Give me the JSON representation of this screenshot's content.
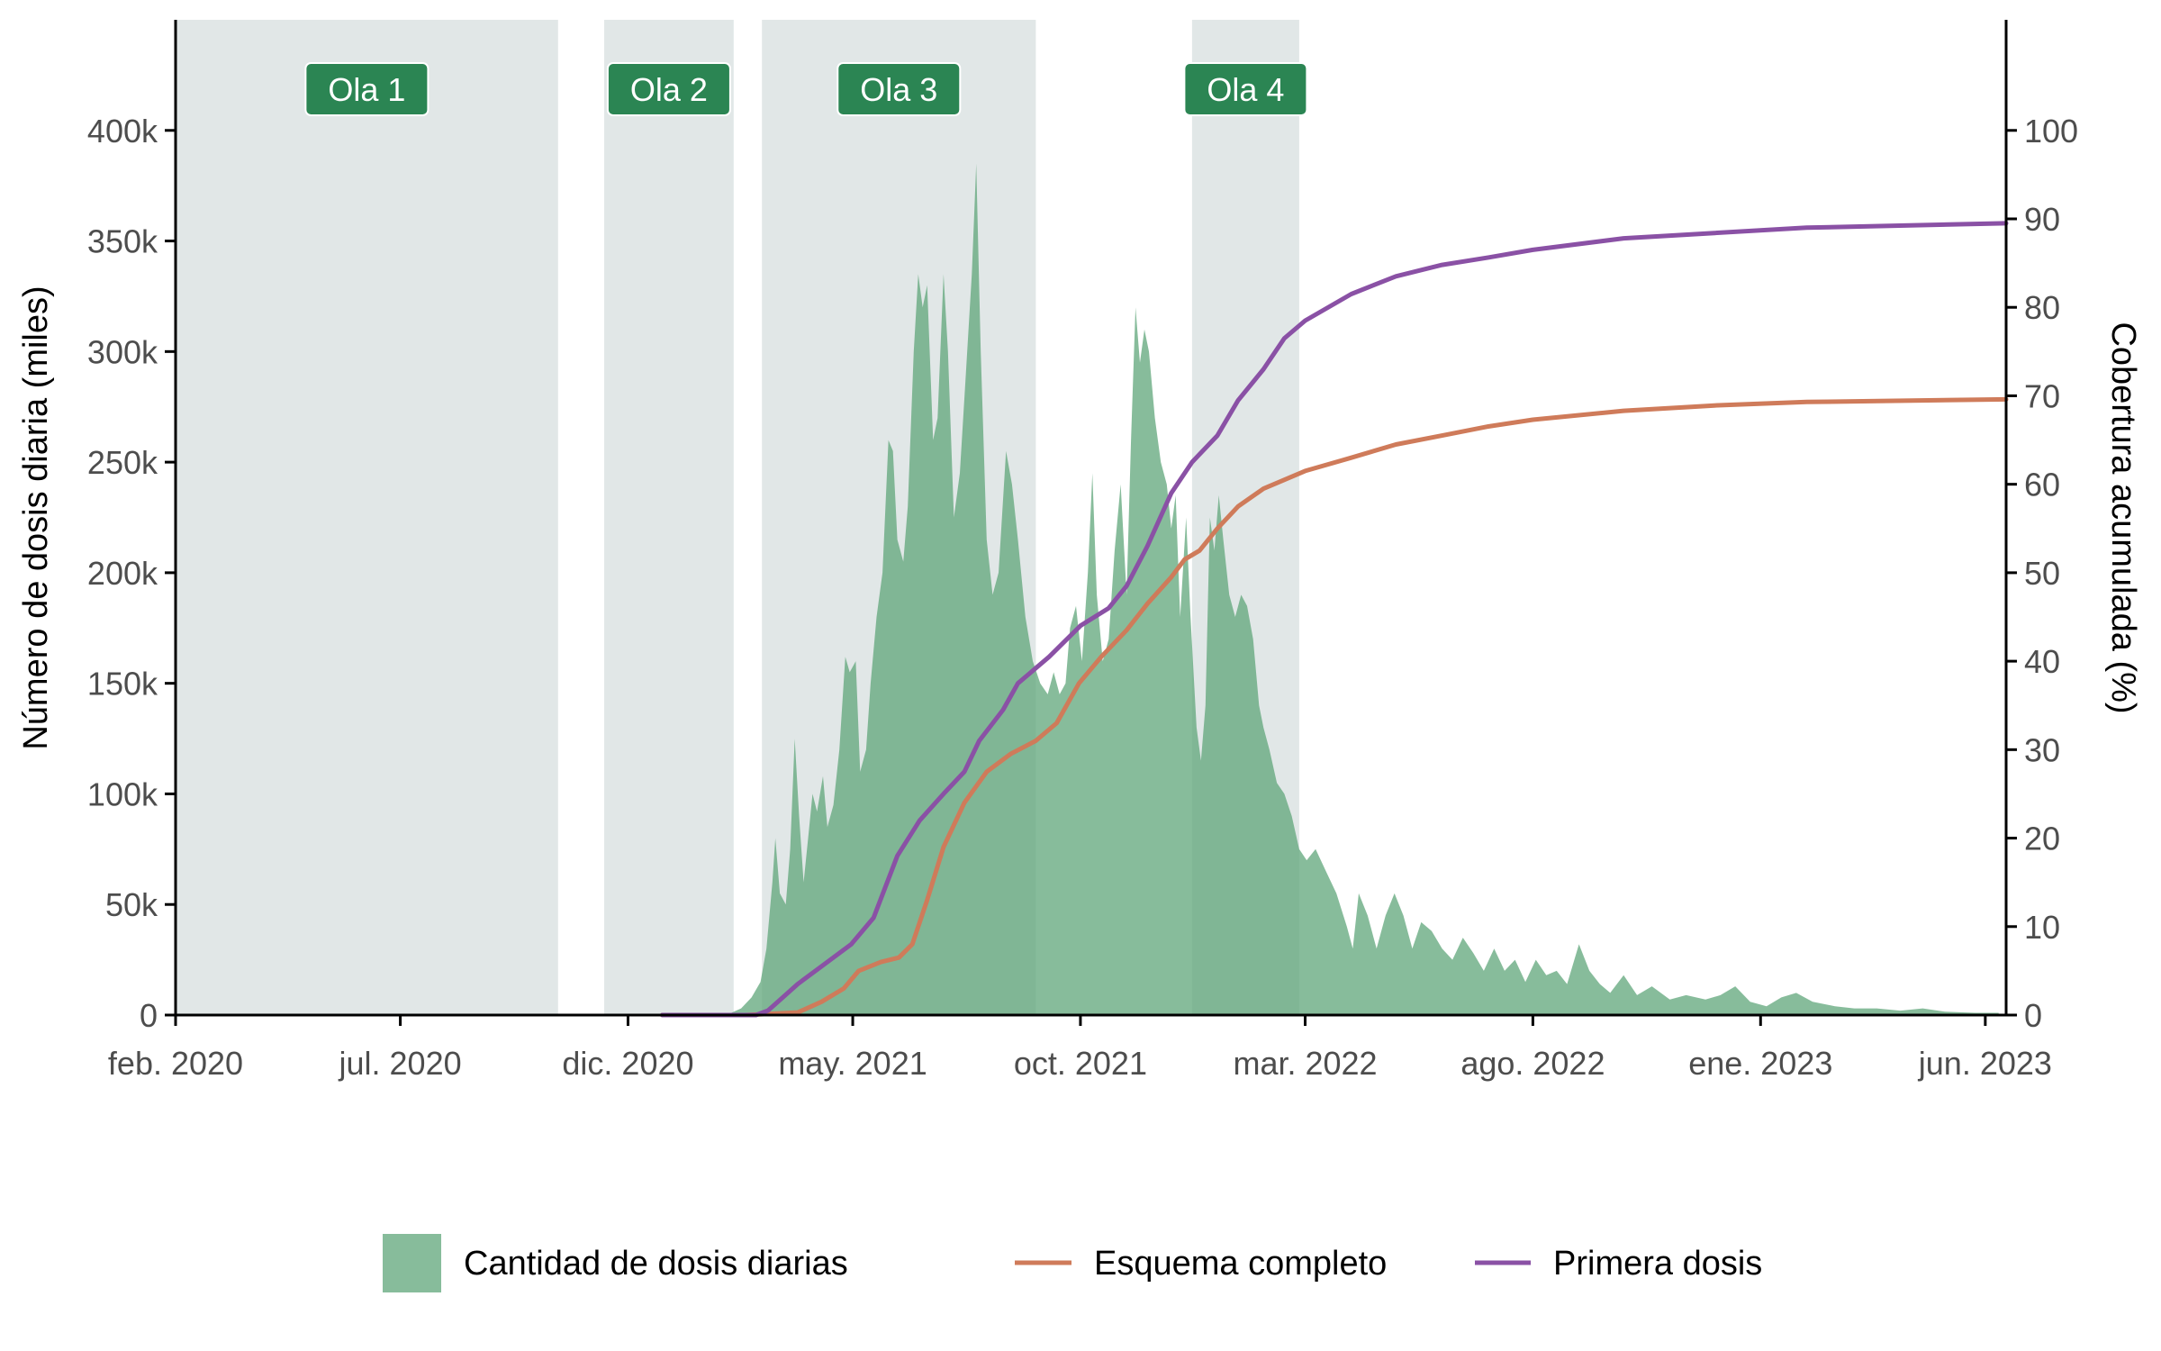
{
  "chart_data": {
    "type": "area",
    "x_axis": {
      "type": "date",
      "range": [
        "2020-02-01",
        "2023-06-15"
      ],
      "ticks": [
        {
          "date": "2020-02-01",
          "label": "feb. 2020"
        },
        {
          "date": "2020-07-01",
          "label": "jul. 2020"
        },
        {
          "date": "2020-12-01",
          "label": "dic. 2020"
        },
        {
          "date": "2021-05-01",
          "label": "may. 2021"
        },
        {
          "date": "2021-10-01",
          "label": "oct. 2021"
        },
        {
          "date": "2022-03-01",
          "label": "mar. 2022"
        },
        {
          "date": "2022-08-01",
          "label": "ago. 2022"
        },
        {
          "date": "2023-01-01",
          "label": "ene. 2023"
        },
        {
          "date": "2023-06-01",
          "label": "jun. 2023"
        }
      ]
    },
    "y_left": {
      "label": "Número de dosis diaria (miles)",
      "range": [
        0,
        450000
      ],
      "ticks": [
        {
          "value": 0,
          "label": "0"
        },
        {
          "value": 50000,
          "label": "50k"
        },
        {
          "value": 100000,
          "label": "100k"
        },
        {
          "value": 150000,
          "label": "150k"
        },
        {
          "value": 200000,
          "label": "200k"
        },
        {
          "value": 250000,
          "label": "250k"
        },
        {
          "value": 300000,
          "label": "300k"
        },
        {
          "value": 350000,
          "label": "350k"
        },
        {
          "value": 400000,
          "label": "400k"
        }
      ]
    },
    "y_right": {
      "label": "Cobertura acumulada (%)",
      "range": [
        0,
        112.5
      ],
      "ticks": [
        0,
        10,
        20,
        30,
        40,
        50,
        60,
        70,
        80,
        90,
        100
      ]
    },
    "grid": false,
    "legend_position": "bottom",
    "waves": [
      {
        "label": "Ola 1",
        "start": "2020-02-01",
        "end": "2020-10-15"
      },
      {
        "label": "Ola 2",
        "start": "2020-11-15",
        "end": "2021-02-10"
      },
      {
        "label": "Ola 3",
        "start": "2021-03-01",
        "end": "2021-09-01"
      },
      {
        "label": "Ola 4",
        "start": "2021-12-15",
        "end": "2022-02-25"
      }
    ],
    "series": [
      {
        "name": "Cantidad de dosis diarias",
        "type": "area",
        "axis": "left",
        "color": "#5fa57a",
        "points": [
          [
            "2020-12-24",
            0
          ],
          [
            "2021-02-05",
            0
          ],
          [
            "2021-02-15",
            3000
          ],
          [
            "2021-02-22",
            8000
          ],
          [
            "2021-02-28",
            15000
          ],
          [
            "2021-03-04",
            30000
          ],
          [
            "2021-03-08",
            60000
          ],
          [
            "2021-03-10",
            80000
          ],
          [
            "2021-03-13",
            55000
          ],
          [
            "2021-03-17",
            50000
          ],
          [
            "2021-03-20",
            75000
          ],
          [
            "2021-03-23",
            125000
          ],
          [
            "2021-03-26",
            90000
          ],
          [
            "2021-03-29",
            60000
          ],
          [
            "2021-04-01",
            80000
          ],
          [
            "2021-04-04",
            100000
          ],
          [
            "2021-04-07",
            92000
          ],
          [
            "2021-04-11",
            108000
          ],
          [
            "2021-04-14",
            85000
          ],
          [
            "2021-04-18",
            95000
          ],
          [
            "2021-04-22",
            120000
          ],
          [
            "2021-04-26",
            162000
          ],
          [
            "2021-04-29",
            155000
          ],
          [
            "2021-05-03",
            160000
          ],
          [
            "2021-05-06",
            110000
          ],
          [
            "2021-05-10",
            120000
          ],
          [
            "2021-05-13",
            150000
          ],
          [
            "2021-05-17",
            180000
          ],
          [
            "2021-05-21",
            200000
          ],
          [
            "2021-05-25",
            260000
          ],
          [
            "2021-05-28",
            255000
          ],
          [
            "2021-05-31",
            215000
          ],
          [
            "2021-06-04",
            205000
          ],
          [
            "2021-06-07",
            230000
          ],
          [
            "2021-06-11",
            300000
          ],
          [
            "2021-06-14",
            335000
          ],
          [
            "2021-06-17",
            320000
          ],
          [
            "2021-06-20",
            330000
          ],
          [
            "2021-06-24",
            260000
          ],
          [
            "2021-06-27",
            270000
          ],
          [
            "2021-07-01",
            335000
          ],
          [
            "2021-07-04",
            300000
          ],
          [
            "2021-07-08",
            225000
          ],
          [
            "2021-07-12",
            245000
          ],
          [
            "2021-07-16",
            290000
          ],
          [
            "2021-07-20",
            335000
          ],
          [
            "2021-07-23",
            385000
          ],
          [
            "2021-07-26",
            300000
          ],
          [
            "2021-07-30",
            215000
          ],
          [
            "2021-08-03",
            190000
          ],
          [
            "2021-08-07",
            200000
          ],
          [
            "2021-08-12",
            255000
          ],
          [
            "2021-08-16",
            240000
          ],
          [
            "2021-08-20",
            215000
          ],
          [
            "2021-08-25",
            180000
          ],
          [
            "2021-08-30",
            160000
          ],
          [
            "2021-09-04",
            150000
          ],
          [
            "2021-09-09",
            145000
          ],
          [
            "2021-09-13",
            155000
          ],
          [
            "2021-09-17",
            145000
          ],
          [
            "2021-09-21",
            150000
          ],
          [
            "2021-09-24",
            175000
          ],
          [
            "2021-09-28",
            185000
          ],
          [
            "2021-10-02",
            160000
          ],
          [
            "2021-10-06",
            200000
          ],
          [
            "2021-10-09",
            245000
          ],
          [
            "2021-10-12",
            190000
          ],
          [
            "2021-10-16",
            160000
          ],
          [
            "2021-10-20",
            170000
          ],
          [
            "2021-10-24",
            210000
          ],
          [
            "2021-10-28",
            240000
          ],
          [
            "2021-11-01",
            190000
          ],
          [
            "2021-11-04",
            260000
          ],
          [
            "2021-11-07",
            320000
          ],
          [
            "2021-11-10",
            295000
          ],
          [
            "2021-11-13",
            310000
          ],
          [
            "2021-11-16",
            300000
          ],
          [
            "2021-11-20",
            270000
          ],
          [
            "2021-11-24",
            250000
          ],
          [
            "2021-11-28",
            240000
          ],
          [
            "2021-12-01",
            220000
          ],
          [
            "2021-12-04",
            235000
          ],
          [
            "2021-12-07",
            180000
          ],
          [
            "2021-12-11",
            225000
          ],
          [
            "2021-12-14",
            180000
          ],
          [
            "2021-12-18",
            130000
          ],
          [
            "2021-12-21",
            115000
          ],
          [
            "2021-12-24",
            140000
          ],
          [
            "2021-12-27",
            225000
          ],
          [
            "2021-12-30",
            210000
          ],
          [
            "2022-01-02",
            235000
          ],
          [
            "2022-01-05",
            215000
          ],
          [
            "2022-01-09",
            190000
          ],
          [
            "2022-01-13",
            180000
          ],
          [
            "2022-01-17",
            190000
          ],
          [
            "2022-01-21",
            185000
          ],
          [
            "2022-01-25",
            170000
          ],
          [
            "2022-01-29",
            140000
          ],
          [
            "2022-02-01",
            130000
          ],
          [
            "2022-02-05",
            120000
          ],
          [
            "2022-02-10",
            105000
          ],
          [
            "2022-02-15",
            100000
          ],
          [
            "2022-02-20",
            90000
          ],
          [
            "2022-02-25",
            75000
          ],
          [
            "2022-03-02",
            70000
          ],
          [
            "2022-03-08",
            75000
          ],
          [
            "2022-03-15",
            65000
          ],
          [
            "2022-03-22",
            55000
          ],
          [
            "2022-03-29",
            40000
          ],
          [
            "2022-04-02",
            30000
          ],
          [
            "2022-04-06",
            55000
          ],
          [
            "2022-04-12",
            45000
          ],
          [
            "2022-04-18",
            30000
          ],
          [
            "2022-04-24",
            45000
          ],
          [
            "2022-04-30",
            55000
          ],
          [
            "2022-05-06",
            45000
          ],
          [
            "2022-05-12",
            30000
          ],
          [
            "2022-05-18",
            42000
          ],
          [
            "2022-05-25",
            38000
          ],
          [
            "2022-06-01",
            30000
          ],
          [
            "2022-06-08",
            25000
          ],
          [
            "2022-06-15",
            35000
          ],
          [
            "2022-06-22",
            28000
          ],
          [
            "2022-06-29",
            20000
          ],
          [
            "2022-07-06",
            30000
          ],
          [
            "2022-07-13",
            20000
          ],
          [
            "2022-07-20",
            25000
          ],
          [
            "2022-07-27",
            15000
          ],
          [
            "2022-08-03",
            25000
          ],
          [
            "2022-08-10",
            18000
          ],
          [
            "2022-08-17",
            20000
          ],
          [
            "2022-08-24",
            14000
          ],
          [
            "2022-09-01",
            32000
          ],
          [
            "2022-09-08",
            20000
          ],
          [
            "2022-09-15",
            14000
          ],
          [
            "2022-09-22",
            10000
          ],
          [
            "2022-10-01",
            18000
          ],
          [
            "2022-10-10",
            9000
          ],
          [
            "2022-10-20",
            13000
          ],
          [
            "2022-11-01",
            7000
          ],
          [
            "2022-11-12",
            9000
          ],
          [
            "2022-11-25",
            7000
          ],
          [
            "2022-12-05",
            9000
          ],
          [
            "2022-12-15",
            13000
          ],
          [
            "2022-12-25",
            6000
          ],
          [
            "2023-01-05",
            4000
          ],
          [
            "2023-01-15",
            8000
          ],
          [
            "2023-01-25",
            10000
          ],
          [
            "2023-02-05",
            6000
          ],
          [
            "2023-02-20",
            4000
          ],
          [
            "2023-03-05",
            3000
          ],
          [
            "2023-03-20",
            3000
          ],
          [
            "2023-04-05",
            2000
          ],
          [
            "2023-04-20",
            3000
          ],
          [
            "2023-05-05",
            1500
          ],
          [
            "2023-05-25",
            1000
          ],
          [
            "2023-06-10",
            1000
          ]
        ]
      },
      {
        "name": "Esquema completo",
        "type": "line",
        "axis": "right",
        "color": "#cf7b5a",
        "points": [
          [
            "2020-12-24",
            0
          ],
          [
            "2021-02-18",
            0
          ],
          [
            "2021-03-25",
            0.3
          ],
          [
            "2021-04-10",
            1.5
          ],
          [
            "2021-04-25",
            3
          ],
          [
            "2021-05-05",
            5
          ],
          [
            "2021-05-20",
            6
          ],
          [
            "2021-06-01",
            6.5
          ],
          [
            "2021-06-10",
            8
          ],
          [
            "2021-06-20",
            13
          ],
          [
            "2021-07-01",
            19
          ],
          [
            "2021-07-15",
            24
          ],
          [
            "2021-07-30",
            27.5
          ],
          [
            "2021-08-15",
            29.5
          ],
          [
            "2021-09-01",
            31
          ],
          [
            "2021-09-15",
            33
          ],
          [
            "2021-09-30",
            37.5
          ],
          [
            "2021-10-15",
            40.5
          ],
          [
            "2021-11-01",
            43.5
          ],
          [
            "2021-11-15",
            46.5
          ],
          [
            "2021-12-01",
            49.5
          ],
          [
            "2021-12-10",
            51.5
          ],
          [
            "2021-12-20",
            52.5
          ],
          [
            "2022-01-01",
            55
          ],
          [
            "2022-01-15",
            57.5
          ],
          [
            "2022-02-01",
            59.5
          ],
          [
            "2022-03-01",
            61.5
          ],
          [
            "2022-04-01",
            63
          ],
          [
            "2022-05-01",
            64.5
          ],
          [
            "2022-06-01",
            65.5
          ],
          [
            "2022-07-01",
            66.5
          ],
          [
            "2022-08-01",
            67.3
          ],
          [
            "2022-10-01",
            68.3
          ],
          [
            "2022-12-01",
            68.9
          ],
          [
            "2023-02-01",
            69.3
          ],
          [
            "2023-06-15",
            69.6
          ]
        ]
      },
      {
        "name": "Primera dosis",
        "type": "line",
        "axis": "right",
        "color": "#8a51a5",
        "points": [
          [
            "2020-12-24",
            0
          ],
          [
            "2021-02-25",
            0
          ],
          [
            "2021-03-05",
            0.5
          ],
          [
            "2021-03-15",
            2
          ],
          [
            "2021-03-25",
            3.5
          ],
          [
            "2021-04-10",
            5.5
          ],
          [
            "2021-04-30",
            8
          ],
          [
            "2021-05-15",
            11
          ],
          [
            "2021-05-31",
            18
          ],
          [
            "2021-06-15",
            22
          ],
          [
            "2021-07-01",
            25
          ],
          [
            "2021-07-15",
            27.5
          ],
          [
            "2021-07-25",
            31
          ],
          [
            "2021-08-10",
            34.5
          ],
          [
            "2021-08-20",
            37.5
          ],
          [
            "2021-09-10",
            40.5
          ],
          [
            "2021-10-01",
            44
          ],
          [
            "2021-10-20",
            46
          ],
          [
            "2021-11-01",
            48.5
          ],
          [
            "2021-11-15",
            53
          ],
          [
            "2021-12-01",
            59
          ],
          [
            "2021-12-15",
            62.5
          ],
          [
            "2022-01-01",
            65.5
          ],
          [
            "2022-01-15",
            69.5
          ],
          [
            "2022-02-01",
            73
          ],
          [
            "2022-02-15",
            76.5
          ],
          [
            "2022-03-01",
            78.5
          ],
          [
            "2022-04-01",
            81.5
          ],
          [
            "2022-05-01",
            83.5
          ],
          [
            "2022-06-01",
            84.8
          ],
          [
            "2022-07-01",
            85.6
          ],
          [
            "2022-08-01",
            86.5
          ],
          [
            "2022-10-01",
            87.8
          ],
          [
            "2022-12-01",
            88.4
          ],
          [
            "2023-02-01",
            89
          ],
          [
            "2023-06-15",
            89.5
          ]
        ]
      }
    ]
  }
}
